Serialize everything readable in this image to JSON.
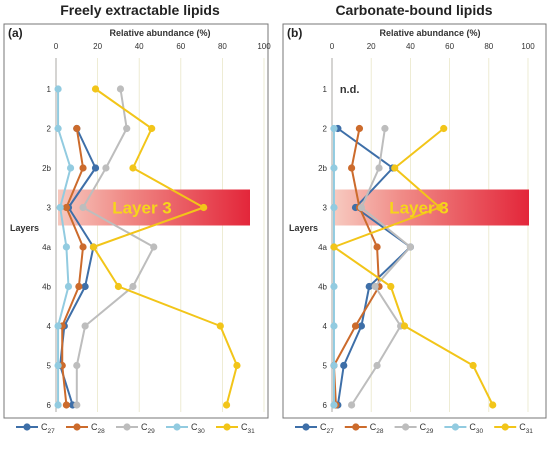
{
  "chart_data": [
    {
      "type": "line",
      "panel_label": "(a)",
      "title": "Freely extractable lipids",
      "xlabel": "Relative abundance (%)",
      "ylabel": "Layers",
      "xlim": [
        0,
        100
      ],
      "xticks": [
        "0",
        "20",
        "40",
        "60",
        "80",
        "100"
      ],
      "layers": [
        "1",
        "2",
        "2b",
        "3",
        "4a",
        "4b",
        "4",
        "5",
        "6"
      ],
      "highlight": {
        "layer": "3",
        "label": "Layer 3"
      },
      "note": "",
      "series": [
        {
          "name": "C27",
          "sub": "27",
          "color": "#3e6fa8",
          "values": [
            null,
            10,
            19,
            6,
            18,
            14,
            4,
            2,
            8
          ]
        },
        {
          "name": "C28",
          "sub": "28",
          "color": "#cc6b2c",
          "values": [
            null,
            10,
            13,
            5,
            13,
            11,
            3,
            3,
            5
          ]
        },
        {
          "name": "C29",
          "sub": "29",
          "color": "#bdbdbd",
          "values": [
            31,
            34,
            24,
            13,
            47,
            37,
            14,
            10,
            10
          ]
        },
        {
          "name": "C30",
          "sub": "30",
          "color": "#92cbe0",
          "values": [
            1,
            1,
            7,
            2,
            5,
            6,
            1,
            1,
            1
          ]
        },
        {
          "name": "C31",
          "sub": "31",
          "color": "#f2c519",
          "values": [
            19,
            46,
            37,
            71,
            18,
            30,
            79,
            87,
            82
          ]
        }
      ]
    },
    {
      "type": "line",
      "panel_label": "(b)",
      "title": "Carbonate-bound lipids",
      "xlabel": "Relative abundance (%)",
      "ylabel": "Layers",
      "xlim": [
        0,
        100
      ],
      "xticks": [
        "0",
        "20",
        "40",
        "60",
        "80",
        "100"
      ],
      "layers": [
        "1",
        "2",
        "2b",
        "3",
        "4a",
        "4b",
        "4",
        "5",
        "6"
      ],
      "highlight": {
        "layer": "3",
        "label": "Layer 3"
      },
      "note": "n.d.",
      "series": [
        {
          "name": "C27",
          "sub": "27",
          "color": "#3e6fa8",
          "values": [
            null,
            3,
            31,
            12,
            40,
            19,
            15,
            6,
            3
          ]
        },
        {
          "name": "C28",
          "sub": "28",
          "color": "#cc6b2c",
          "values": [
            null,
            14,
            10,
            14,
            23,
            24,
            12,
            1,
            2
          ]
        },
        {
          "name": "C29",
          "sub": "29",
          "color": "#bdbdbd",
          "values": [
            null,
            27,
            24,
            15,
            40,
            22,
            35,
            23,
            10
          ]
        },
        {
          "name": "C30",
          "sub": "30",
          "color": "#92cbe0",
          "values": [
            null,
            1,
            1,
            1,
            1,
            1,
            1,
            1,
            1
          ]
        },
        {
          "name": "C31",
          "sub": "31",
          "color": "#f2c519",
          "values": [
            null,
            57,
            32,
            55,
            1,
            30,
            37,
            72,
            82
          ]
        }
      ]
    }
  ]
}
